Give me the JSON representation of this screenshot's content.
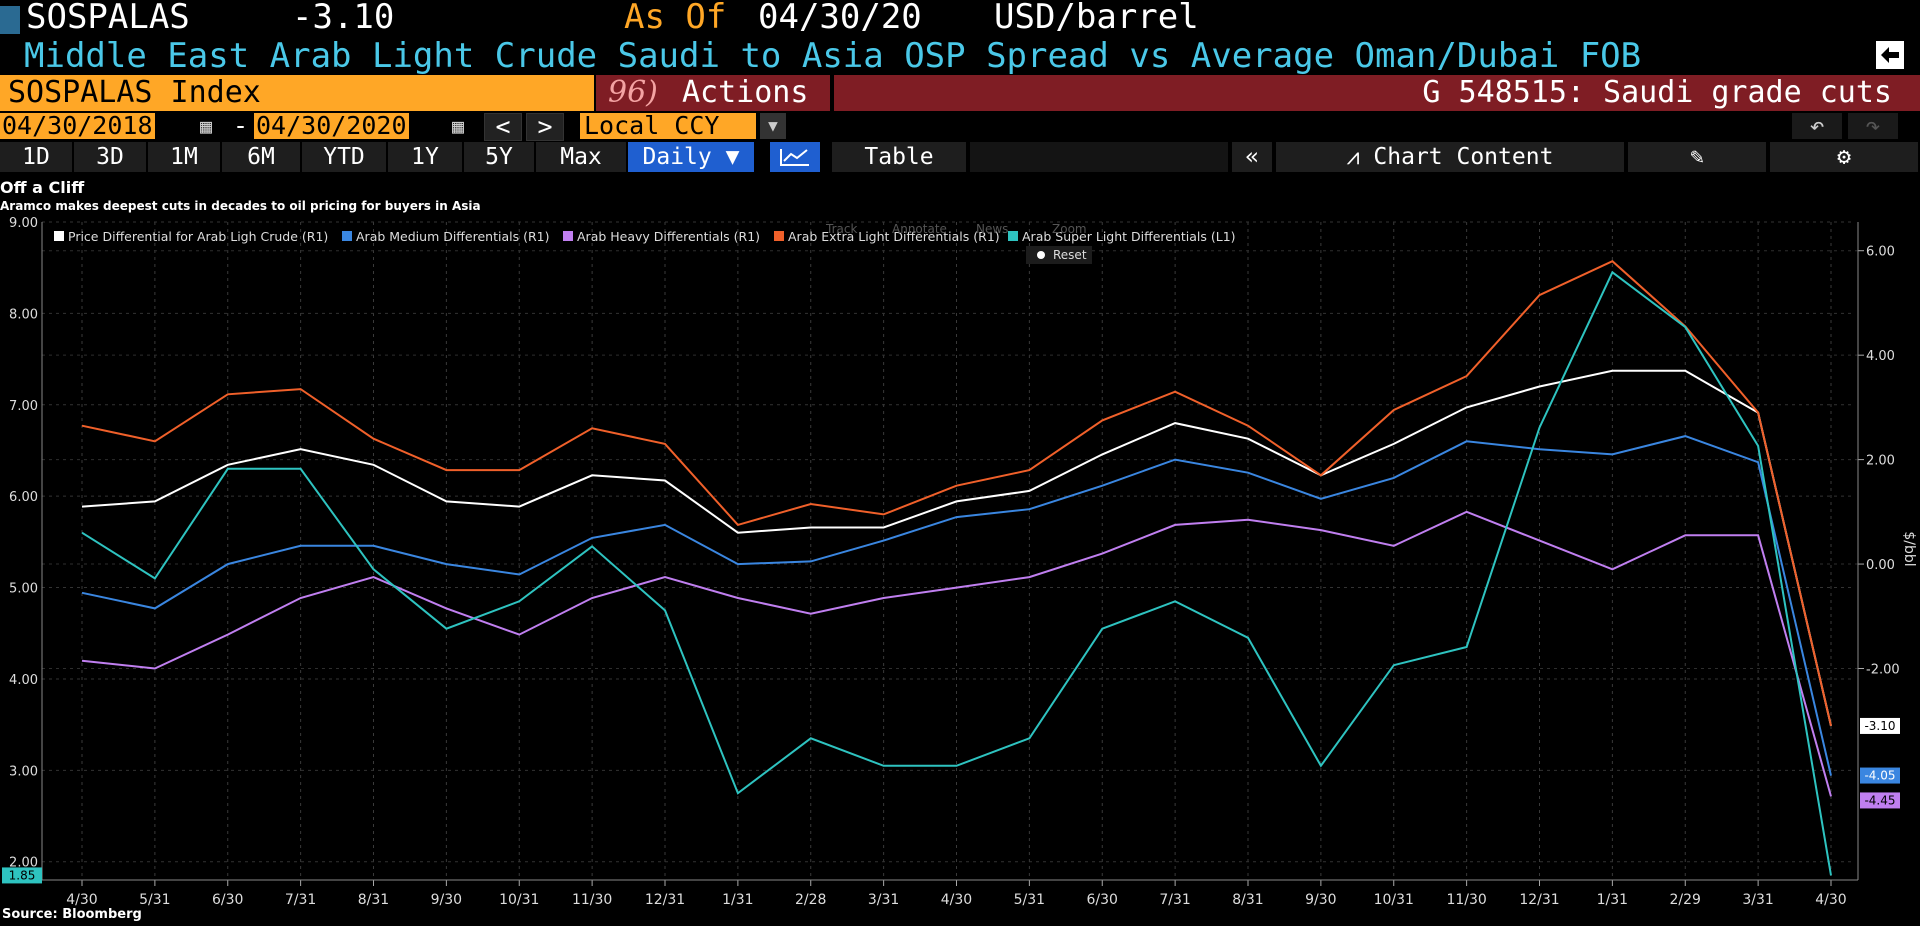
{
  "header": {
    "ticker": "SOSPALAS",
    "value": "-3.10",
    "as_of_label": "As Of",
    "as_of_date": "04/30/20",
    "unit": "USD/barrel",
    "description": "Middle East Arab Light Crude Saudi to Asia OSP Spread vs Average Oman/Dubai FOB"
  },
  "bar": {
    "security": "SOSPALAS Index",
    "actions_num": "96)",
    "actions_label": "Actions",
    "news_code": "G 548515: Saudi grade cuts"
  },
  "controls": {
    "start_date": "04/30/2018",
    "dash": "-",
    "end_date": "04/30/2020",
    "currency": "Local CCY"
  },
  "toolbar": {
    "periods": [
      "1D",
      "3D",
      "1M",
      "6M",
      "YTD",
      "1Y",
      "5Y",
      "Max"
    ],
    "frequency": "Daily",
    "table": "Table",
    "chart_content": "Chart Content"
  },
  "chart_tools": {
    "track": "Track",
    "annotate": "Annotate",
    "news": "News",
    "zoom": "Zoom",
    "reset": "Reset"
  },
  "source": "Source: Bloomberg",
  "colors": {
    "white": "#ffffff",
    "medium": "#3a86e0",
    "heavy": "#c07ff0",
    "extra_light": "#f0602a",
    "super_light": "#2ec3c0",
    "orange": "#ffa726",
    "maroon": "#7f1d24"
  },
  "chart_data": {
    "type": "line",
    "title": "Off a Cliff",
    "subtitle": "Aramco makes deepest cuts in decades to oil pricing for buyers in Asia",
    "x": [
      "4/30",
      "5/31",
      "6/30",
      "7/31",
      "8/31",
      "9/30",
      "10/31",
      "11/30",
      "12/31",
      "1/31",
      "2/28",
      "3/31",
      "4/30",
      "5/31",
      "6/30",
      "7/31",
      "8/31",
      "9/30",
      "10/31",
      "11/30",
      "12/31",
      "1/31",
      "2/29",
      "3/31",
      "4/30"
    ],
    "left_axis": {
      "ylim": [
        1.8,
        9.0
      ],
      "ticks": [
        "2.00",
        "3.00",
        "4.00",
        "5.00",
        "6.00",
        "7.00",
        "8.00",
        "9.00"
      ]
    },
    "right_axis": {
      "label": "$/bbl",
      "ylim": [
        -6.05,
        6.55
      ],
      "ticks": [
        "-2.00",
        "0.00",
        "2.00",
        "4.00",
        "6.00"
      ]
    },
    "series": [
      {
        "name": "Price Differential for Arab Ligh Crude (R1)",
        "axis": "right",
        "color": "#ffffff",
        "last_label": "-3.10",
        "values": [
          1.1,
          1.2,
          1.9,
          2.2,
          1.9,
          1.2,
          1.1,
          1.7,
          1.6,
          0.6,
          0.7,
          0.7,
          1.2,
          1.4,
          2.1,
          2.7,
          2.4,
          1.7,
          2.3,
          3.0,
          3.4,
          3.7,
          3.7,
          2.9,
          -3.1
        ]
      },
      {
        "name": "Arab Medium Differentials (R1)",
        "axis": "right",
        "color": "#3a86e0",
        "last_label": "-4.05",
        "values": [
          -0.55,
          -0.85,
          0.0,
          0.35,
          0.35,
          0.0,
          -0.2,
          0.5,
          0.75,
          0.0,
          0.05,
          0.45,
          0.9,
          1.05,
          1.5,
          2.0,
          1.75,
          1.25,
          1.65,
          2.35,
          2.2,
          2.1,
          2.45,
          1.95,
          -4.05
        ]
      },
      {
        "name": "Arab Heavy Differentials (R1)",
        "axis": "right",
        "color": "#c07ff0",
        "last_label": "-4.45",
        "values": [
          -1.85,
          -2.0,
          -1.35,
          -0.65,
          -0.25,
          -0.85,
          -1.35,
          -0.65,
          -0.25,
          -0.65,
          -0.95,
          -0.65,
          -0.45,
          -0.25,
          0.2,
          0.75,
          0.85,
          0.65,
          0.35,
          1.0,
          0.45,
          -0.1,
          0.55,
          0.55,
          -4.45
        ]
      },
      {
        "name": "Arab Extra Light Differentials (R1)",
        "axis": "right",
        "color": "#f0602a",
        "last_label": "",
        "values": [
          2.65,
          2.35,
          3.25,
          3.35,
          2.4,
          1.8,
          1.8,
          2.6,
          2.3,
          0.75,
          1.15,
          0.95,
          1.5,
          1.8,
          2.75,
          3.3,
          2.65,
          1.7,
          2.95,
          3.6,
          5.15,
          5.8,
          4.55,
          2.9,
          -3.1
        ]
      },
      {
        "name": "Arab Super Light Differentials (L1)",
        "axis": "left",
        "color": "#2ec3c0",
        "last_label": "1.85",
        "values": [
          5.6,
          5.1,
          6.3,
          6.3,
          5.2,
          4.55,
          4.85,
          5.45,
          4.75,
          2.75,
          3.35,
          3.05,
          3.05,
          3.35,
          4.55,
          4.85,
          4.45,
          3.05,
          4.15,
          4.35,
          6.75,
          8.45,
          7.85,
          6.55,
          1.85
        ]
      }
    ]
  }
}
